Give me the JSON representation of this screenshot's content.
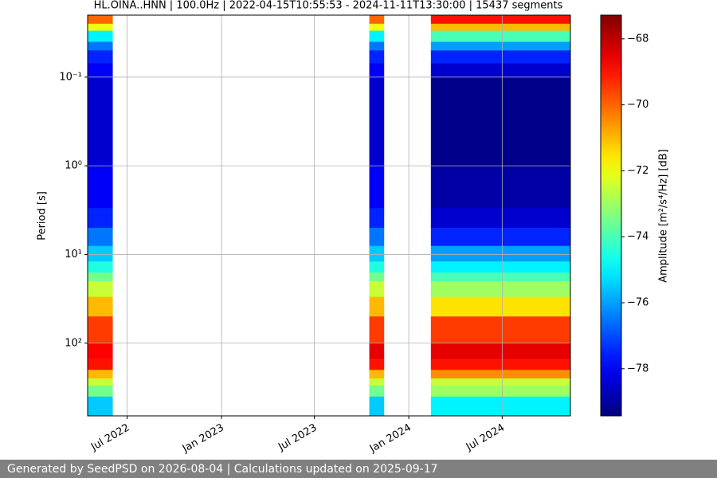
{
  "chart_data": {
    "type": "spectrogram",
    "title": "HL.OINA..HNN | 100.0Hz | 2022-04-15T10:55:53 - 2024-11-11T13:30:00 | 15437 segments",
    "y_label": "Period [s]",
    "colorbar_label": "Amplitude [m²/s⁴/Hz] [dB]",
    "colormap": "jet",
    "y_scale": "log",
    "y_inverted": true,
    "grid": true,
    "xlim": [
      "2022-04-15",
      "2024-11-11"
    ],
    "xticks": [
      {
        "value": "2022-07-01",
        "label": "Jul 2022"
      },
      {
        "value": "2023-01-01",
        "label": "Jan 2023"
      },
      {
        "value": "2023-07-01",
        "label": "Jul 2023"
      },
      {
        "value": "2024-01-01",
        "label": "Jan 2024"
      },
      {
        "value": "2024-07-01",
        "label": "Jul 2024"
      }
    ],
    "ylim": [
      0.02,
      660
    ],
    "yticks": [
      {
        "value": 0.1,
        "label": "10⁻¹"
      },
      {
        "value": 1,
        "label": "10⁰"
      },
      {
        "value": 10,
        "label": "10¹"
      },
      {
        "value": 100,
        "label": "10²"
      }
    ],
    "zlim": [
      -79.43,
      -67.28
    ],
    "zticks": [
      {
        "value": -68,
        "label": "−68"
      },
      {
        "value": -70,
        "label": "−70"
      },
      {
        "value": -72,
        "label": "−72"
      },
      {
        "value": -74,
        "label": "−74"
      },
      {
        "value": -76,
        "label": "−76"
      },
      {
        "value": -78,
        "label": "−78"
      }
    ],
    "period_bins": [
      0.02,
      0.025,
      0.03,
      0.04,
      0.05,
      0.07,
      0.1,
      0.3,
      1,
      3,
      5,
      8,
      12,
      16,
      20,
      30,
      50,
      100,
      150,
      200,
      250,
      300,
      400,
      660
    ],
    "segments": [
      {
        "start": "2022-04-15",
        "end": "2022-06-03",
        "values": [
          -70,
          -72,
          -75,
          -76.5,
          -77.5,
          -78,
          -78.5,
          -78.5,
          -78,
          -77.5,
          -76.5,
          -75.5,
          -74.5,
          -73.5,
          -72.5,
          -71,
          -69.5,
          -68.8,
          -69,
          -71,
          -72.5,
          -73.5,
          -75.5
        ]
      },
      {
        "start": "2023-10-16",
        "end": "2023-11-14",
        "values": [
          -70,
          -72,
          -75,
          -76.5,
          -77.5,
          -78,
          -78.5,
          -78.5,
          -78,
          -77.5,
          -76.5,
          -75.5,
          -74.5,
          -73.5,
          -72.5,
          -71,
          -69.5,
          -68.5,
          -69,
          -71,
          -72.5,
          -73.5,
          -75.5
        ]
      },
      {
        "start": "2024-02-13",
        "end": "2024-11-11",
        "values": [
          -69,
          -71,
          -74,
          -76,
          -77.5,
          -78.5,
          -79.3,
          -79.3,
          -79,
          -78.5,
          -77.5,
          -76,
          -75,
          -74,
          -73,
          -71.5,
          -69.5,
          -68.5,
          -69,
          -70.5,
          -72.5,
          -73,
          -75
        ]
      }
    ]
  },
  "footer": "Generated by SeedPSD on 2026-08-04 | Calculations updated on 2025-09-17"
}
